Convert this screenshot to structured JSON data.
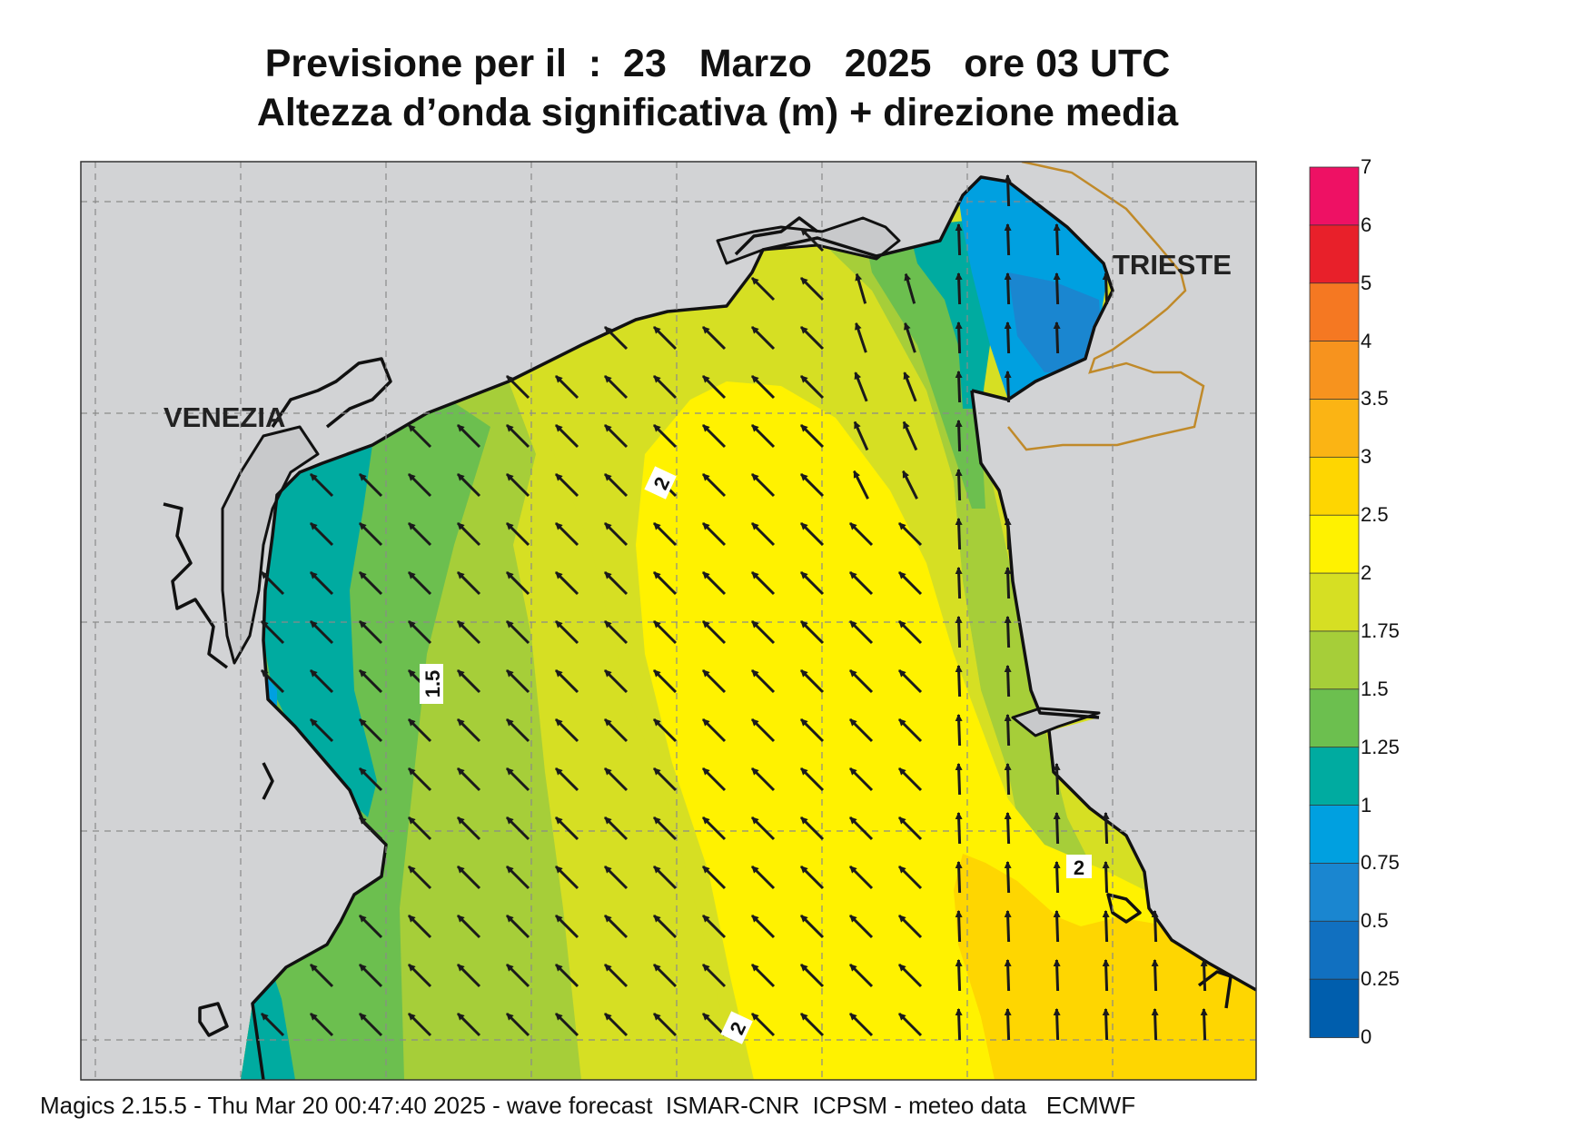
{
  "title_line1": "Previsione per il  :  23   Marzo   2025   ore 03 UTC",
  "title_line2": "Altezza d’onda significativa (m) + direzione media",
  "cities": {
    "venezia": "VENEZIA",
    "trieste": "TRIESTE"
  },
  "contour_labels": {
    "c_2_a": "2",
    "c_15": "1.5",
    "c_2_b": "2",
    "c_2_c": "2"
  },
  "colorbar": {
    "ticks": [
      "7",
      "6",
      "5",
      "4",
      "3.5",
      "3",
      "2.5",
      "2",
      "1.75",
      "1.5",
      "1.25",
      "1",
      "0.75",
      "0.5",
      "0.25",
      "0"
    ],
    "colors": [
      "#ee1164",
      "#e8202a",
      "#f57822",
      "#f7931e",
      "#fbb414",
      "#fed601",
      "#fff200",
      "#d6df23",
      "#a6ce39",
      "#6cbf4f",
      "#00aba0",
      "#00a0e0",
      "#1a86d0",
      "#1170c0",
      "#005ead"
    ]
  },
  "wave_direction": "NW",
  "footer": "Magics 2.15.5 - Thu Mar 20 00:47:40 2025 - wave forecast  ISMAR-CNR  ICPSM - meteo data   ECMWF"
}
